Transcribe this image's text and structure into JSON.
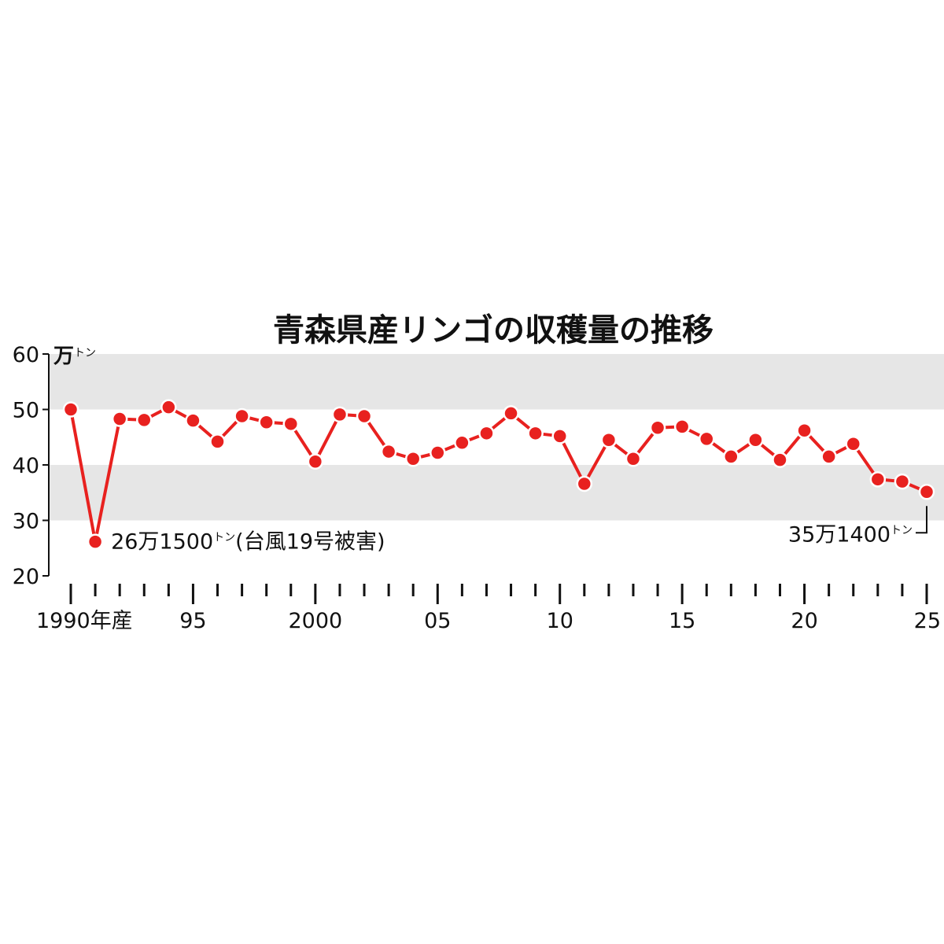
{
  "chart_data": {
    "type": "line",
    "title": "青森県産リンゴの収穫量の推移",
    "y_unit": "万トン",
    "ylim": [
      20,
      60
    ],
    "y_ticks": [
      20,
      30,
      40,
      50,
      60
    ],
    "x_range": [
      1990,
      2025
    ],
    "x_tick_labels": [
      {
        "x": 1990,
        "label": "1990年産"
      },
      {
        "x": 1995,
        "label": "95"
      },
      {
        "x": 2000,
        "label": "2000"
      },
      {
        "x": 2005,
        "label": "05"
      },
      {
        "x": 2010,
        "label": "10"
      },
      {
        "x": 2015,
        "label": "15"
      },
      {
        "x": 2020,
        "label": "20"
      },
      {
        "x": 2025,
        "label": "25"
      }
    ],
    "series": [
      {
        "color": "#e8211f",
        "x": [
          1990,
          1991,
          1992,
          1993,
          1994,
          1995,
          1996,
          1997,
          1998,
          1999,
          2000,
          2001,
          2002,
          2003,
          2004,
          2005,
          2006,
          2007,
          2008,
          2009,
          2010,
          2011,
          2012,
          2013,
          2014,
          2015,
          2016,
          2017,
          2018,
          2019,
          2020,
          2021,
          2022,
          2023,
          2024,
          2025
        ],
        "values": [
          50.0,
          26.15,
          48.3,
          48.1,
          50.4,
          48.0,
          44.2,
          48.8,
          47.7,
          47.4,
          40.6,
          49.1,
          48.8,
          42.4,
          41.1,
          42.2,
          44.0,
          45.7,
          49.3,
          45.7,
          45.2,
          36.6,
          44.5,
          41.1,
          46.7,
          46.9,
          44.7,
          41.5,
          44.5,
          40.9,
          46.2,
          41.5,
          43.8,
          37.4,
          37.0,
          35.14
        ]
      }
    ],
    "annotations": [
      {
        "x": 1991,
        "y": 26.15,
        "text": "26万1500トン(台風19号被害)"
      },
      {
        "x": 2025,
        "y": 35.14,
        "text": "35万1400トン"
      }
    ],
    "bands": [
      [
        30,
        40
      ],
      [
        50,
        60
      ]
    ],
    "band_color": "#e6e6e6",
    "grid": false
  }
}
